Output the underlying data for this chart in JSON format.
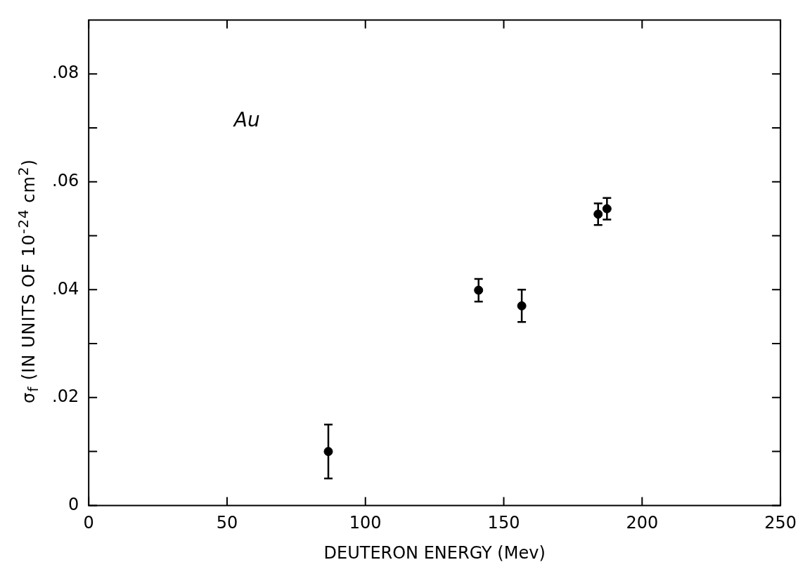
{
  "chart_data": {
    "type": "scatter",
    "xlabel": "DEUTERON ENERGY (Mev)",
    "ylabel": "σ$_{f}$ (IN UNITS OF 10$^{-24}$ cm$^{2}$)",
    "annotations": [
      "Au"
    ],
    "x": [
      86.6,
      140.9,
      156.5,
      184.1,
      187.3
    ],
    "values": [
      0.01,
      0.0399,
      0.037,
      0.054,
      0.055
    ],
    "errors": [
      0.005,
      0.0021,
      0.003,
      0.002,
      0.002
    ],
    "color": "#000000",
    "marker": "circle",
    "grid": false,
    "xlim": [
      0,
      250
    ],
    "xticks": [
      0,
      50,
      100,
      150,
      200,
      250
    ],
    "ylim": [
      0,
      0.09
    ],
    "yticks": [
      {
        "value": 0,
        "label": "0"
      },
      {
        "value": 0.01,
        "label": null
      },
      {
        "value": 0.02,
        "label": ".02"
      },
      {
        "value": 0.03,
        "label": null
      },
      {
        "value": 0.04,
        "label": ".04"
      },
      {
        "value": 0.05,
        "label": null
      },
      {
        "value": 0.06,
        "label": ".06"
      },
      {
        "value": 0.07,
        "label": null
      },
      {
        "value": 0.08,
        "label": ".08"
      }
    ]
  }
}
